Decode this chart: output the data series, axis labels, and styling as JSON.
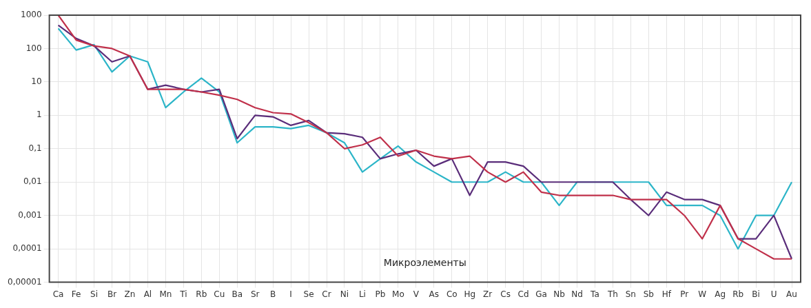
{
  "chart_data": {
    "type": "line",
    "categories": [
      "Ca",
      "Fe",
      "Si",
      "Br",
      "Zn",
      "Al",
      "Mn",
      "Ti",
      "Rb",
      "Cu",
      "Ba",
      "Sr",
      "B",
      "I",
      "Se",
      "Cr",
      "Ni",
      "Li",
      "Pb",
      "Mo",
      "V",
      "As",
      "Co",
      "Hg",
      "Zr",
      "Cs",
      "Cd",
      "Ga",
      "Nb",
      "Nd",
      "Ta",
      "Th",
      "Sn",
      "Sb",
      "Hf",
      "Pr",
      "W",
      "Ag",
      "Rb",
      "Bi",
      "U",
      "Au"
    ],
    "series": [
      {
        "color": "#c0304a",
        "values": [
          1000,
          180,
          120,
          100,
          60,
          6,
          6,
          6,
          5,
          4,
          3,
          1.7,
          1.2,
          1.1,
          0.6,
          0.3,
          0.1,
          0.13,
          0.22,
          0.06,
          0.09,
          0.06,
          0.05,
          0.06,
          0.02,
          0.01,
          0.02,
          0.005,
          0.004,
          0.004,
          0.004,
          0.004,
          0.003,
          0.003,
          0.003,
          0.001,
          0.0002,
          0.002,
          0.0002,
          0.0001,
          5e-05,
          5e-05
        ]
      },
      {
        "color": "#5a2d7a",
        "values": [
          500,
          200,
          120,
          40,
          60,
          6,
          8,
          6,
          5,
          6,
          0.2,
          1,
          0.9,
          0.5,
          0.7,
          0.3,
          0.28,
          0.22,
          0.05,
          0.07,
          0.09,
          0.03,
          0.05,
          0.004,
          0.04,
          0.04,
          0.03,
          0.01,
          0.01,
          0.01,
          0.01,
          0.01,
          0.003,
          0.001,
          0.005,
          0.003,
          0.003,
          0.002,
          0.0002,
          0.0002,
          0.001,
          5e-05
        ]
      },
      {
        "color": "#2cb5c8",
        "values": [
          400,
          90,
          130,
          20,
          60,
          40,
          1.7,
          5,
          13,
          5,
          0.15,
          0.45,
          0.45,
          0.4,
          0.5,
          0.3,
          0.15,
          0.02,
          0.05,
          0.12,
          0.04,
          0.02,
          0.01,
          0.01,
          0.01,
          0.02,
          0.01,
          0.01,
          0.002,
          0.01,
          0.01,
          0.01,
          0.01,
          0.01,
          0.002,
          0.002,
          0.002,
          0.001,
          0.0001,
          0.001,
          0.001,
          0.01
        ]
      }
    ],
    "log": "y",
    "ylim": [
      1e-05,
      1000
    ],
    "yticks": [
      {
        "value": 1e-05,
        "label": "0,00001"
      },
      {
        "value": 0.0001,
        "label": "0,0001"
      },
      {
        "value": 0.001,
        "label": "0,001"
      },
      {
        "value": 0.01,
        "label": "0,01"
      },
      {
        "value": 0.1,
        "label": "0,1"
      },
      1,
      10,
      100,
      1000
    ],
    "grid": true,
    "legend": false,
    "marker": "none",
    "line_style": "solid",
    "annotations": [
      "Микроэлементы"
    ]
  }
}
